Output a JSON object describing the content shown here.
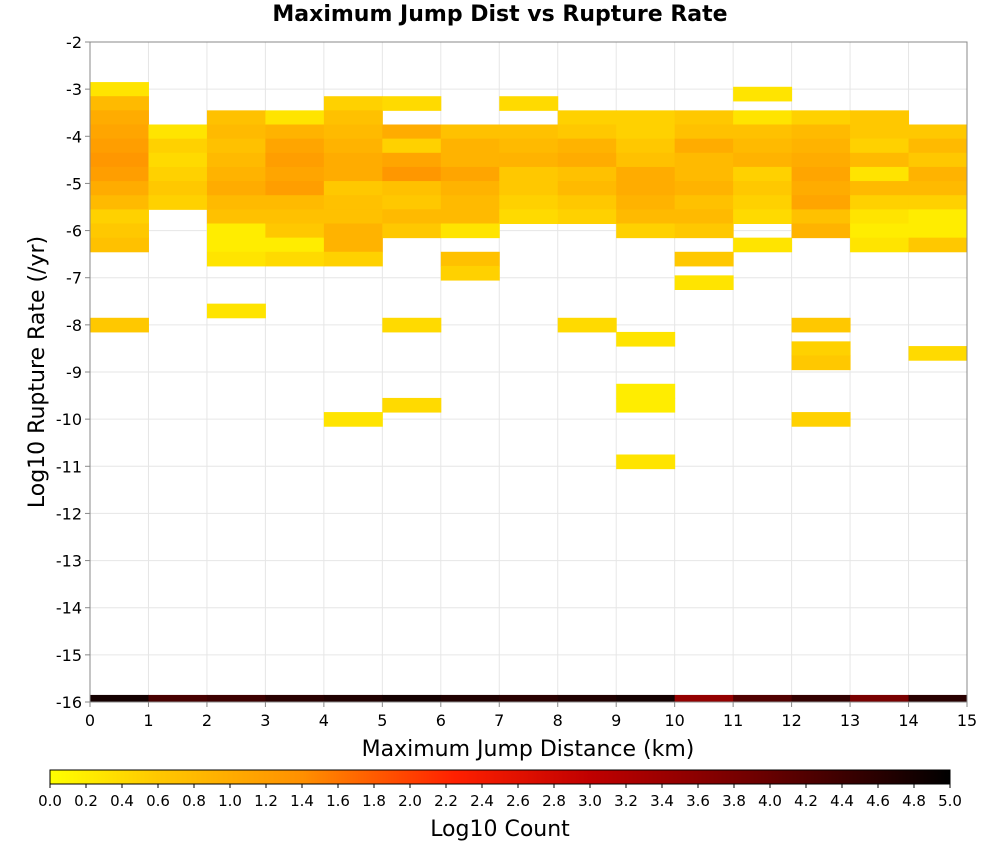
{
  "chart_data": {
    "type": "heatmap",
    "title": "Maximum Jump Dist vs Rupture Rate",
    "xlabel": "Maximum Jump Distance (km)",
    "ylabel": "Log10 Rupture Rate (/yr)",
    "xlim": [
      0,
      15
    ],
    "ylim": [
      -16,
      -2
    ],
    "x_ticks": [
      "0",
      "1",
      "2",
      "3",
      "4",
      "5",
      "6",
      "7",
      "8",
      "9",
      "10",
      "11",
      "12",
      "13",
      "14",
      "15"
    ],
    "y_ticks": [
      "-2",
      "-3",
      "-4",
      "-5",
      "-6",
      "-7",
      "-8",
      "-9",
      "-10",
      "-11",
      "-12",
      "-13",
      "-14",
      "-15",
      "-16"
    ],
    "grid": true,
    "x_bin_width": 1,
    "y_bin_height": 0.3,
    "colorbar": {
      "label": "Log10 Count",
      "min": 0.0,
      "max": 5.0,
      "ticks": [
        "0.0",
        "0.2",
        "0.4",
        "0.6",
        "0.8",
        "1.0",
        "1.2",
        "1.4",
        "1.6",
        "1.8",
        "2.0",
        "2.2",
        "2.4",
        "2.6",
        "2.8",
        "3.0",
        "3.2",
        "3.4",
        "3.6",
        "3.8",
        "4.0",
        "4.2",
        "4.4",
        "4.6",
        "4.8",
        "5.0"
      ],
      "colors": [
        "#ffff00",
        "#ffa500",
        "#ff0000",
        "#000000"
      ]
    },
    "cells": [
      {
        "x": 0,
        "y": -3.0,
        "v": 0.3
      },
      {
        "x": 0,
        "y": -3.3,
        "v": 0.8
      },
      {
        "x": 0,
        "y": -3.6,
        "v": 1.0
      },
      {
        "x": 0,
        "y": -3.9,
        "v": 1.1
      },
      {
        "x": 0,
        "y": -4.2,
        "v": 1.2
      },
      {
        "x": 0,
        "y": -4.5,
        "v": 1.3
      },
      {
        "x": 0,
        "y": -4.8,
        "v": 1.2
      },
      {
        "x": 0,
        "y": -5.1,
        "v": 1.0
      },
      {
        "x": 0,
        "y": -5.4,
        "v": 0.8
      },
      {
        "x": 0,
        "y": -5.7,
        "v": 0.5
      },
      {
        "x": 0,
        "y": -6.0,
        "v": 0.6
      },
      {
        "x": 0,
        "y": -6.3,
        "v": 0.7
      },
      {
        "x": 0,
        "y": -8.0,
        "v": 0.6
      },
      {
        "x": 0,
        "y": -16.0,
        "v": 4.8
      },
      {
        "x": 1,
        "y": -3.9,
        "v": 0.3
      },
      {
        "x": 1,
        "y": -4.2,
        "v": 0.5
      },
      {
        "x": 1,
        "y": -4.5,
        "v": 0.4
      },
      {
        "x": 1,
        "y": -4.8,
        "v": 0.5
      },
      {
        "x": 1,
        "y": -5.1,
        "v": 0.6
      },
      {
        "x": 1,
        "y": -5.4,
        "v": 0.5
      },
      {
        "x": 1,
        "y": -16.0,
        "v": 4.3
      },
      {
        "x": 2,
        "y": -3.6,
        "v": 0.7
      },
      {
        "x": 2,
        "y": -3.9,
        "v": 0.8
      },
      {
        "x": 2,
        "y": -4.2,
        "v": 0.7
      },
      {
        "x": 2,
        "y": -4.5,
        "v": 0.8
      },
      {
        "x": 2,
        "y": -4.8,
        "v": 0.9
      },
      {
        "x": 2,
        "y": -5.1,
        "v": 1.0
      },
      {
        "x": 2,
        "y": -5.4,
        "v": 0.8
      },
      {
        "x": 2,
        "y": -5.7,
        "v": 0.7
      },
      {
        "x": 2,
        "y": -6.0,
        "v": 0.2
      },
      {
        "x": 2,
        "y": -6.3,
        "v": 0.2
      },
      {
        "x": 2,
        "y": -6.6,
        "v": 0.3
      },
      {
        "x": 2,
        "y": -7.7,
        "v": 0.3
      },
      {
        "x": 2,
        "y": -16.0,
        "v": 4.4
      },
      {
        "x": 3,
        "y": -3.6,
        "v": 0.3
      },
      {
        "x": 3,
        "y": -3.9,
        "v": 0.9
      },
      {
        "x": 3,
        "y": -4.2,
        "v": 1.1
      },
      {
        "x": 3,
        "y": -4.5,
        "v": 1.2
      },
      {
        "x": 3,
        "y": -4.8,
        "v": 1.1
      },
      {
        "x": 3,
        "y": -5.1,
        "v": 1.2
      },
      {
        "x": 3,
        "y": -5.4,
        "v": 0.8
      },
      {
        "x": 3,
        "y": -5.7,
        "v": 0.7
      },
      {
        "x": 3,
        "y": -6.0,
        "v": 0.6
      },
      {
        "x": 3,
        "y": -6.3,
        "v": 0.2
      },
      {
        "x": 3,
        "y": -6.6,
        "v": 0.4
      },
      {
        "x": 3,
        "y": -16.0,
        "v": 4.6
      },
      {
        "x": 4,
        "y": -3.3,
        "v": 0.5
      },
      {
        "x": 4,
        "y": -3.6,
        "v": 0.7
      },
      {
        "x": 4,
        "y": -3.9,
        "v": 0.8
      },
      {
        "x": 4,
        "y": -4.2,
        "v": 0.9
      },
      {
        "x": 4,
        "y": -4.5,
        "v": 1.0
      },
      {
        "x": 4,
        "y": -4.8,
        "v": 1.0
      },
      {
        "x": 4,
        "y": -5.1,
        "v": 0.6
      },
      {
        "x": 4,
        "y": -5.4,
        "v": 0.7
      },
      {
        "x": 4,
        "y": -5.7,
        "v": 0.7
      },
      {
        "x": 4,
        "y": -6.0,
        "v": 0.9
      },
      {
        "x": 4,
        "y": -6.3,
        "v": 0.9
      },
      {
        "x": 4,
        "y": -6.6,
        "v": 0.5
      },
      {
        "x": 4,
        "y": -10.0,
        "v": 0.3
      },
      {
        "x": 4,
        "y": -16.0,
        "v": 4.7
      },
      {
        "x": 5,
        "y": -3.3,
        "v": 0.4
      },
      {
        "x": 5,
        "y": -3.9,
        "v": 1.0
      },
      {
        "x": 5,
        "y": -4.2,
        "v": 0.5
      },
      {
        "x": 5,
        "y": -4.5,
        "v": 1.1
      },
      {
        "x": 5,
        "y": -4.8,
        "v": 1.3
      },
      {
        "x": 5,
        "y": -5.1,
        "v": 0.7
      },
      {
        "x": 5,
        "y": -5.4,
        "v": 0.6
      },
      {
        "x": 5,
        "y": -5.7,
        "v": 0.8
      },
      {
        "x": 5,
        "y": -6.0,
        "v": 0.6
      },
      {
        "x": 5,
        "y": -8.0,
        "v": 0.4
      },
      {
        "x": 5,
        "y": -9.7,
        "v": 0.4
      },
      {
        "x": 5,
        "y": -16.0,
        "v": 4.8
      },
      {
        "x": 6,
        "y": -3.9,
        "v": 0.7
      },
      {
        "x": 6,
        "y": -4.2,
        "v": 0.9
      },
      {
        "x": 6,
        "y": -4.5,
        "v": 0.9
      },
      {
        "x": 6,
        "y": -4.8,
        "v": 1.1
      },
      {
        "x": 6,
        "y": -5.1,
        "v": 0.9
      },
      {
        "x": 6,
        "y": -5.4,
        "v": 0.8
      },
      {
        "x": 6,
        "y": -5.7,
        "v": 0.8
      },
      {
        "x": 6,
        "y": -6.0,
        "v": 0.3
      },
      {
        "x": 6,
        "y": -6.6,
        "v": 0.7
      },
      {
        "x": 6,
        "y": -6.9,
        "v": 0.5
      },
      {
        "x": 6,
        "y": -16.0,
        "v": 4.7
      },
      {
        "x": 7,
        "y": -3.3,
        "v": 0.4
      },
      {
        "x": 7,
        "y": -3.9,
        "v": 0.7
      },
      {
        "x": 7,
        "y": -4.2,
        "v": 0.8
      },
      {
        "x": 7,
        "y": -4.5,
        "v": 0.9
      },
      {
        "x": 7,
        "y": -4.8,
        "v": 0.6
      },
      {
        "x": 7,
        "y": -5.1,
        "v": 0.6
      },
      {
        "x": 7,
        "y": -5.4,
        "v": 0.5
      },
      {
        "x": 7,
        "y": -5.7,
        "v": 0.4
      },
      {
        "x": 7,
        "y": -16.0,
        "v": 4.6
      },
      {
        "x": 8,
        "y": -3.6,
        "v": 0.5
      },
      {
        "x": 8,
        "y": -3.9,
        "v": 0.6
      },
      {
        "x": 8,
        "y": -4.2,
        "v": 0.9
      },
      {
        "x": 8,
        "y": -4.5,
        "v": 1.0
      },
      {
        "x": 8,
        "y": -4.8,
        "v": 0.7
      },
      {
        "x": 8,
        "y": -5.1,
        "v": 0.8
      },
      {
        "x": 8,
        "y": -5.4,
        "v": 0.6
      },
      {
        "x": 8,
        "y": -5.7,
        "v": 0.5
      },
      {
        "x": 8,
        "y": -8.0,
        "v": 0.4
      },
      {
        "x": 8,
        "y": -16.0,
        "v": 4.7
      },
      {
        "x": 9,
        "y": -3.6,
        "v": 0.5
      },
      {
        "x": 9,
        "y": -3.9,
        "v": 0.5
      },
      {
        "x": 9,
        "y": -4.2,
        "v": 0.6
      },
      {
        "x": 9,
        "y": -4.5,
        "v": 0.7
      },
      {
        "x": 9,
        "y": -4.8,
        "v": 1.0
      },
      {
        "x": 9,
        "y": -5.1,
        "v": 1.0
      },
      {
        "x": 9,
        "y": -5.4,
        "v": 0.9
      },
      {
        "x": 9,
        "y": -5.7,
        "v": 0.8
      },
      {
        "x": 9,
        "y": -6.0,
        "v": 0.5
      },
      {
        "x": 9,
        "y": -8.3,
        "v": 0.3
      },
      {
        "x": 9,
        "y": -9.4,
        "v": 0.2
      },
      {
        "x": 9,
        "y": -9.7,
        "v": 0.2
      },
      {
        "x": 9,
        "y": -10.9,
        "v": 0.3
      },
      {
        "x": 9,
        "y": -16.0,
        "v": 4.8
      },
      {
        "x": 10,
        "y": -3.6,
        "v": 0.6
      },
      {
        "x": 10,
        "y": -3.9,
        "v": 0.7
      },
      {
        "x": 10,
        "y": -4.2,
        "v": 1.0
      },
      {
        "x": 10,
        "y": -4.5,
        "v": 0.8
      },
      {
        "x": 10,
        "y": -4.8,
        "v": 0.8
      },
      {
        "x": 10,
        "y": -5.1,
        "v": 0.9
      },
      {
        "x": 10,
        "y": -5.4,
        "v": 0.7
      },
      {
        "x": 10,
        "y": -5.7,
        "v": 0.8
      },
      {
        "x": 10,
        "y": -6.0,
        "v": 0.6
      },
      {
        "x": 10,
        "y": -6.6,
        "v": 0.6
      },
      {
        "x": 10,
        "y": -7.1,
        "v": 0.3
      },
      {
        "x": 10,
        "y": -16.0,
        "v": 3.5
      },
      {
        "x": 11,
        "y": -3.1,
        "v": 0.3
      },
      {
        "x": 11,
        "y": -3.6,
        "v": 0.3
      },
      {
        "x": 11,
        "y": -3.9,
        "v": 0.7
      },
      {
        "x": 11,
        "y": -4.2,
        "v": 0.8
      },
      {
        "x": 11,
        "y": -4.5,
        "v": 0.9
      },
      {
        "x": 11,
        "y": -4.8,
        "v": 0.5
      },
      {
        "x": 11,
        "y": -5.1,
        "v": 0.6
      },
      {
        "x": 11,
        "y": -5.4,
        "v": 0.5
      },
      {
        "x": 11,
        "y": -5.7,
        "v": 0.4
      },
      {
        "x": 11,
        "y": -6.3,
        "v": 0.3
      },
      {
        "x": 11,
        "y": -16.0,
        "v": 4.2
      },
      {
        "x": 12,
        "y": -3.6,
        "v": 0.5
      },
      {
        "x": 12,
        "y": -3.9,
        "v": 0.8
      },
      {
        "x": 12,
        "y": -4.2,
        "v": 0.9
      },
      {
        "x": 12,
        "y": -4.5,
        "v": 1.0
      },
      {
        "x": 12,
        "y": -4.8,
        "v": 1.1
      },
      {
        "x": 12,
        "y": -5.1,
        "v": 1.0
      },
      {
        "x": 12,
        "y": -5.4,
        "v": 1.1
      },
      {
        "x": 12,
        "y": -5.7,
        "v": 0.7
      },
      {
        "x": 12,
        "y": -6.0,
        "v": 0.9
      },
      {
        "x": 12,
        "y": -8.0,
        "v": 0.6
      },
      {
        "x": 12,
        "y": -8.5,
        "v": 0.5
      },
      {
        "x": 12,
        "y": -8.8,
        "v": 0.6
      },
      {
        "x": 12,
        "y": -10.0,
        "v": 0.5
      },
      {
        "x": 12,
        "y": -16.0,
        "v": 4.5
      },
      {
        "x": 13,
        "y": -3.6,
        "v": 0.6
      },
      {
        "x": 13,
        "y": -3.9,
        "v": 0.6
      },
      {
        "x": 13,
        "y": -4.2,
        "v": 0.5
      },
      {
        "x": 13,
        "y": -4.5,
        "v": 0.8
      },
      {
        "x": 13,
        "y": -4.8,
        "v": 0.3
      },
      {
        "x": 13,
        "y": -5.1,
        "v": 0.8
      },
      {
        "x": 13,
        "y": -5.4,
        "v": 0.5
      },
      {
        "x": 13,
        "y": -5.7,
        "v": 0.3
      },
      {
        "x": 13,
        "y": -6.0,
        "v": 0.2
      },
      {
        "x": 13,
        "y": -6.3,
        "v": 0.3
      },
      {
        "x": 13,
        "y": -16.0,
        "v": 3.8
      },
      {
        "x": 14,
        "y": -3.9,
        "v": 0.6
      },
      {
        "x": 14,
        "y": -4.2,
        "v": 0.8
      },
      {
        "x": 14,
        "y": -4.5,
        "v": 0.6
      },
      {
        "x": 14,
        "y": -4.8,
        "v": 0.9
      },
      {
        "x": 14,
        "y": -5.1,
        "v": 0.8
      },
      {
        "x": 14,
        "y": -5.4,
        "v": 0.5
      },
      {
        "x": 14,
        "y": -5.7,
        "v": 0.2
      },
      {
        "x": 14,
        "y": -6.0,
        "v": 0.2
      },
      {
        "x": 14,
        "y": -6.3,
        "v": 0.6
      },
      {
        "x": 14,
        "y": -8.6,
        "v": 0.4
      },
      {
        "x": 14,
        "y": -16.0,
        "v": 4.6
      }
    ]
  }
}
